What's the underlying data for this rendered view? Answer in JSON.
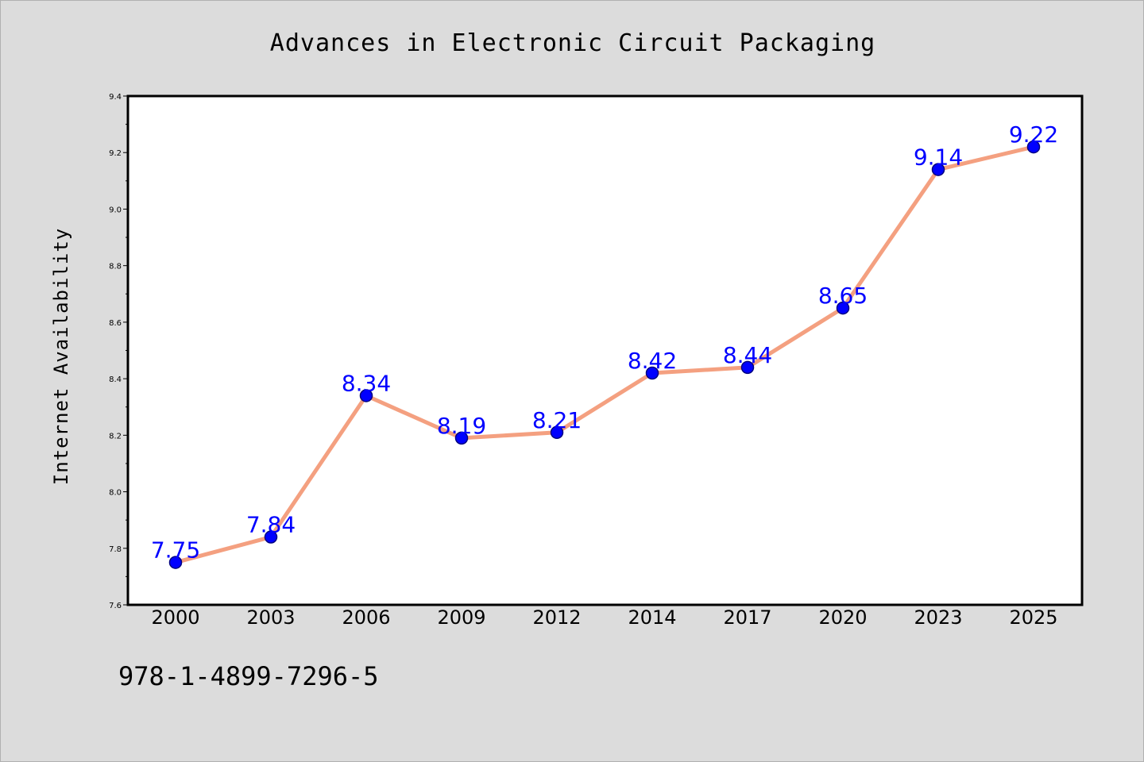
{
  "colors": {
    "background": "#dcdcdc",
    "plot_background": "#ffffff",
    "line": "#f4a080",
    "marker_fill": "#0000ff",
    "marker_edge": "#000080",
    "data_label": "#0000ff"
  },
  "footnote": "978-1-4899-7296-5",
  "chart_data": {
    "type": "line",
    "title": "Advances in Electronic Circuit Packaging",
    "xlabel": "",
    "ylabel": "Internet Availability",
    "categories": [
      "2000",
      "2003",
      "2006",
      "2009",
      "2012",
      "2014",
      "2017",
      "2020",
      "2023",
      "2025"
    ],
    "series": [
      {
        "values": [
          7.75,
          7.84,
          8.34,
          8.19,
          8.21,
          8.42,
          8.44,
          8.65,
          9.14,
          9.22
        ],
        "labels": [
          "7.75",
          "7.84",
          "8.34",
          "8.19",
          "8.21",
          "8.42",
          "8.44",
          "8.65",
          "9.14",
          "9.22"
        ]
      }
    ],
    "ylim": [
      7.6,
      9.4
    ],
    "yticks": [
      "7.6",
      "7.8",
      "8.0",
      "8.2",
      "8.4",
      "8.6",
      "8.8",
      "9.0",
      "9.2",
      "9.4"
    ],
    "grid": false,
    "legend": "none",
    "markers": true,
    "data_labels": true
  }
}
